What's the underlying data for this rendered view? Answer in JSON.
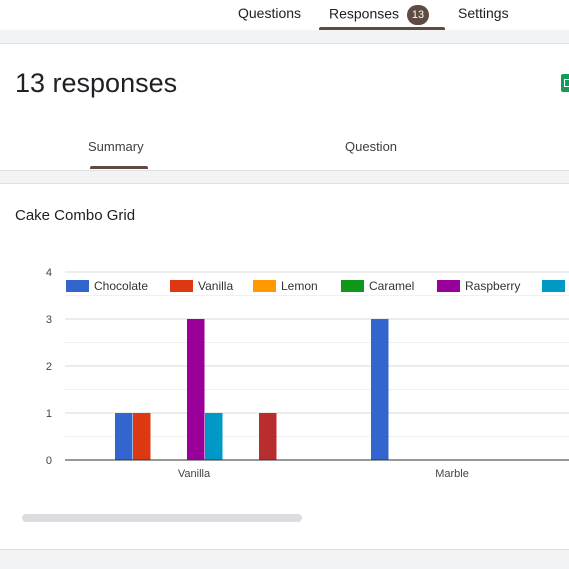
{
  "nav": {
    "questions_label": "Questions",
    "responses_label": "Responses",
    "responses_count": "13",
    "settings_label": "Settings",
    "accent_color": "#5f4b41"
  },
  "header": {
    "title": "13 responses",
    "summary_tab": "Summary",
    "question_tab": "Question",
    "sheets_icon": "google-sheets-icon"
  },
  "question": {
    "title": "Cake Combo Grid"
  },
  "chart_data": {
    "type": "bar",
    "title": "",
    "xlabel": "",
    "ylabel": "",
    "ylim": [
      0,
      4
    ],
    "yticks": [
      0,
      1,
      2,
      3,
      4
    ],
    "grid": true,
    "legend_position": "top",
    "categories": [
      "Vanilla",
      "Marble"
    ],
    "series": [
      {
        "name": "Chocolate",
        "color": "#3366cc",
        "values": [
          1,
          3
        ]
      },
      {
        "name": "Vanilla",
        "color": "#dc3912",
        "values": [
          1,
          0
        ]
      },
      {
        "name": "Lemon",
        "color": "#ff9900",
        "values": [
          0,
          0
        ]
      },
      {
        "name": "Caramel",
        "color": "#109618",
        "values": [
          0,
          0
        ]
      },
      {
        "name": "Raspberry",
        "color": "#990099",
        "values": [
          3,
          0
        ]
      },
      {
        "name": "",
        "color": "#0099c6",
        "values": [
          1,
          0
        ]
      },
      {
        "name": "",
        "color": "#dd4477",
        "values": [
          0,
          0
        ]
      },
      {
        "name": "",
        "color": "#66aa00",
        "values": [
          0,
          0
        ]
      },
      {
        "name": "",
        "color": "#b82e2e",
        "values": [
          1,
          0
        ]
      }
    ]
  }
}
